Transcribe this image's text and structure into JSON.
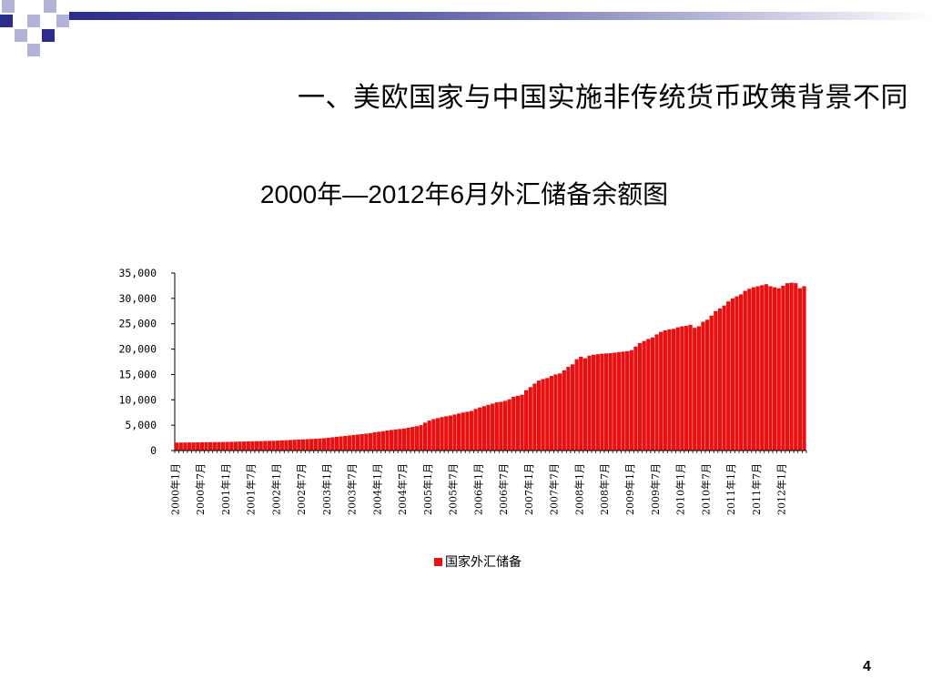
{
  "slide": {
    "heading": "一、美欧国家与中国实施非传统货币政策背景不同",
    "page_number": "4"
  },
  "colors": {
    "bar": "#e81010",
    "accent": "#2c2c8c",
    "deco_light": "#b3b3d9"
  },
  "chart_data": {
    "type": "bar",
    "title": "2000年—2012年6月外汇储备余额图",
    "xlabel": "",
    "ylabel": "",
    "ylim": [
      0,
      35000
    ],
    "y_ticks": [
      0,
      5000,
      10000,
      15000,
      20000,
      25000,
      30000,
      35000
    ],
    "y_tick_labels": [
      "0",
      "5,000",
      "10,000",
      "15,000",
      "20,000",
      "25,000",
      "30,000",
      "35,000"
    ],
    "x_tick_labels": [
      "2000年1月",
      "2000年7月",
      "2001年1月",
      "2001年7月",
      "2002年1月",
      "2002年7月",
      "2003年1月",
      "2003年7月",
      "2004年1月",
      "2004年7月",
      "2005年1月",
      "2005年7月",
      "2006年1月",
      "2006年7月",
      "2007年1月",
      "2007年7月",
      "2008年1月",
      "2008年7月",
      "2009年1月",
      "2009年7月",
      "2010年1月",
      "2010年7月",
      "2011年1月",
      "2011年7月",
      "2012年1月"
    ],
    "grid": false,
    "legend_position": "bottom",
    "series": [
      {
        "name": "国家外汇储备",
        "values": [
          1560,
          1570,
          1580,
          1590,
          1600,
          1610,
          1620,
          1640,
          1650,
          1660,
          1670,
          1680,
          1700,
          1720,
          1740,
          1760,
          1780,
          1800,
          1820,
          1840,
          1860,
          1880,
          1900,
          1920,
          1960,
          2000,
          2040,
          2080,
          2120,
          2160,
          2200,
          2240,
          2280,
          2320,
          2370,
          2430,
          2520,
          2610,
          2700,
          2790,
          2880,
          2970,
          3060,
          3150,
          3240,
          3330,
          3420,
          3600,
          3700,
          3800,
          3950,
          4050,
          4150,
          4250,
          4350,
          4500,
          4650,
          4800,
          5000,
          5500,
          5900,
          6200,
          6400,
          6600,
          6750,
          6900,
          7100,
          7300,
          7500,
          7650,
          7800,
          8200,
          8500,
          8750,
          9000,
          9250,
          9500,
          9600,
          9800,
          10100,
          10600,
          10800,
          11000,
          11900,
          12500,
          13200,
          13800,
          14100,
          14300,
          14700,
          15000,
          15200,
          15800,
          16500,
          17000,
          18000,
          18500,
          18200,
          18700,
          18900,
          19000,
          19100,
          19150,
          19200,
          19300,
          19400,
          19500,
          19600,
          19800,
          20500,
          21200,
          21600,
          22000,
          22300,
          22900,
          23400,
          23700,
          23900,
          24000,
          24300,
          24500,
          24600,
          24800,
          24200,
          24500,
          25400,
          25800,
          26600,
          27500,
          28000,
          28600,
          29400,
          30000,
          30400,
          30800,
          31500,
          31900,
          32200,
          32400,
          32600,
          32800,
          32400,
          32200,
          32000,
          32500,
          33000,
          33100,
          33000,
          32000,
          32400
        ]
      }
    ]
  }
}
